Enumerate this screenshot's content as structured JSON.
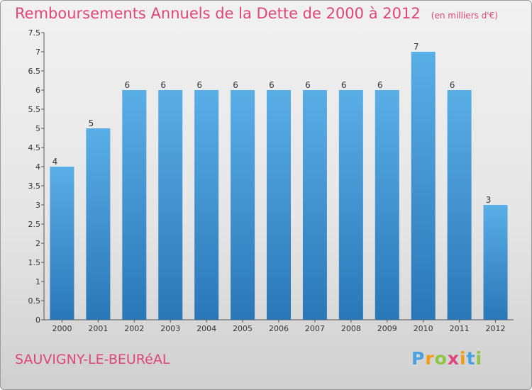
{
  "header": {
    "title": "Remboursements Annuels de la Dette de 2000 à 2012",
    "subtitle": "(en milliers d'€)"
  },
  "footer": {
    "commune": "SAUVIGNY-LE-BEURéAL",
    "logo_letters": [
      "P",
      "r",
      "o",
      "x",
      "i",
      "t",
      "i"
    ],
    "logo_colors": [
      "#4aa3df",
      "#f39c12",
      "#8dc63f",
      "#e0457b",
      "#f39c12",
      "#4aa3df",
      "#8dc63f"
    ]
  },
  "chart_data": {
    "type": "bar",
    "categories": [
      "2000",
      "2001",
      "2002",
      "2003",
      "2004",
      "2005",
      "2006",
      "2007",
      "2008",
      "2009",
      "2010",
      "2011",
      "2012"
    ],
    "values": [
      4,
      5,
      6,
      6,
      6,
      6,
      6,
      6,
      6,
      6,
      7,
      6,
      3
    ],
    "ylim": [
      0,
      7.5
    ],
    "yticks": [
      "0",
      "0.5",
      "1",
      "1.5",
      "2",
      "2.5",
      "3",
      "3.5",
      "4",
      "4.5",
      "5",
      "5.5",
      "6",
      "6.5",
      "7",
      "7.5"
    ],
    "grid": false,
    "bar_color_top": "#5aaee6",
    "bar_color_bottom": "#2a77b8"
  }
}
